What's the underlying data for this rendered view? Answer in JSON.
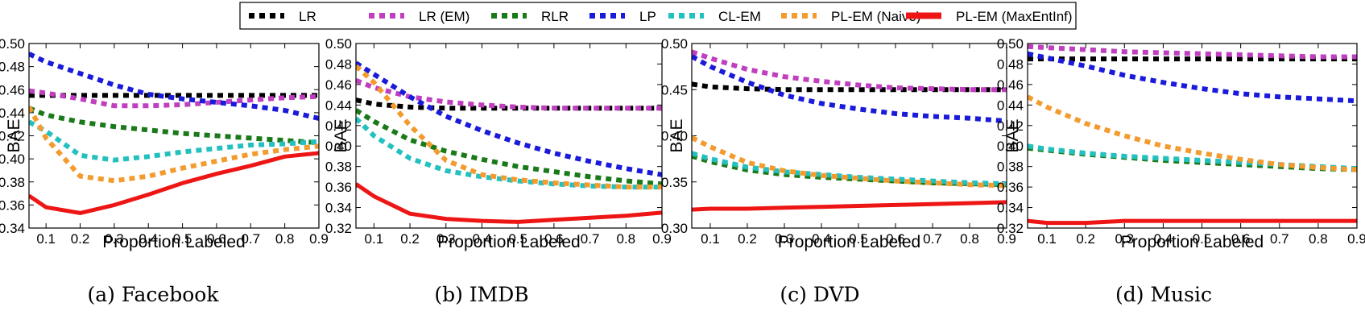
{
  "legend": [
    {
      "name": "LR",
      "color": "#000000",
      "style": "dotted"
    },
    {
      "name": "LR (EM)",
      "color": "#bf3fbf",
      "style": "dotted"
    },
    {
      "name": "RLR",
      "color": "#1a7a1a",
      "style": "dotted"
    },
    {
      "name": "LP",
      "color": "#1a1adb",
      "style": "dotted"
    },
    {
      "name": "CL-EM",
      "color": "#23c0c0",
      "style": "dotted"
    },
    {
      "name": "PL-EM (Naive)",
      "color": "#f39b2e",
      "style": "dotted"
    },
    {
      "name": "PL-EM (MaxEntInf)",
      "color": "#ee1515",
      "style": "solid"
    }
  ],
  "chart_data": [
    {
      "type": "line",
      "title": "(a) Facebook",
      "xlabel": "Proportion Labeled",
      "ylabel": "BAE",
      "xlim": [
        0.05,
        0.9
      ],
      "ylim": [
        0.34,
        0.5
      ],
      "xticks": [
        "0.1",
        "0.2",
        "0.3",
        "0.4",
        "0.5",
        "0.6",
        "0.7",
        "0.8",
        "0.9"
      ],
      "yticks": [
        "0.34",
        "0.36",
        "0.38",
        "0.40",
        "0.42",
        "0.44",
        "0.46",
        "0.48",
        "0.50"
      ],
      "x": [
        0.05,
        0.1,
        0.2,
        0.3,
        0.4,
        0.5,
        0.6,
        0.7,
        0.8,
        0.9
      ],
      "series": [
        {
          "name": "LR",
          "values": [
            0.455,
            0.455,
            0.455,
            0.455,
            0.455,
            0.455,
            0.455,
            0.455,
            0.455,
            0.455
          ]
        },
        {
          "name": "LR (EM)",
          "values": [
            0.459,
            0.457,
            0.452,
            0.446,
            0.446,
            0.447,
            0.449,
            0.451,
            0.453,
            0.454
          ]
        },
        {
          "name": "RLR",
          "values": [
            0.444,
            0.438,
            0.432,
            0.428,
            0.425,
            0.422,
            0.42,
            0.418,
            0.416,
            0.414
          ]
        },
        {
          "name": "LP",
          "values": [
            0.491,
            0.484,
            0.474,
            0.464,
            0.456,
            0.452,
            0.449,
            0.446,
            0.442,
            0.435
          ]
        },
        {
          "name": "CL-EM",
          "values": [
            0.432,
            0.424,
            0.403,
            0.399,
            0.402,
            0.406,
            0.409,
            0.412,
            0.413,
            0.415
          ]
        },
        {
          "name": "PL-EM (Naive)",
          "values": [
            0.445,
            0.418,
            0.385,
            0.381,
            0.385,
            0.392,
            0.398,
            0.404,
            0.408,
            0.411
          ]
        },
        {
          "name": "PL-EM (MaxEntInf)",
          "values": [
            0.368,
            0.358,
            0.353,
            0.36,
            0.369,
            0.379,
            0.387,
            0.394,
            0.402,
            0.405
          ]
        }
      ]
    },
    {
      "type": "line",
      "title": "(b) IMDB",
      "xlabel": "Proportion Labeled",
      "ylabel": "BAE",
      "xlim": [
        0.05,
        0.9
      ],
      "ylim": [
        0.32,
        0.5
      ],
      "xticks": [
        "0.1",
        "0.2",
        "0.3",
        "0.4",
        "0.5",
        "0.6",
        "0.7",
        "0.8",
        "0.9"
      ],
      "yticks": [
        "0.32",
        "0.34",
        "0.36",
        "0.38",
        "0.40",
        "0.42",
        "0.44",
        "0.46",
        "0.48",
        "0.50"
      ],
      "x": [
        0.05,
        0.1,
        0.2,
        0.3,
        0.4,
        0.5,
        0.6,
        0.7,
        0.8,
        0.9
      ],
      "series": [
        {
          "name": "LR",
          "values": [
            0.445,
            0.441,
            0.438,
            0.437,
            0.437,
            0.437,
            0.437,
            0.437,
            0.437,
            0.437
          ]
        },
        {
          "name": "LR (EM)",
          "values": [
            0.464,
            0.457,
            0.448,
            0.443,
            0.44,
            0.438,
            0.437,
            0.437,
            0.437,
            0.437
          ]
        },
        {
          "name": "RLR",
          "values": [
            0.435,
            0.424,
            0.406,
            0.395,
            0.387,
            0.38,
            0.375,
            0.37,
            0.366,
            0.363
          ]
        },
        {
          "name": "LP",
          "values": [
            0.481,
            0.47,
            0.448,
            0.429,
            0.415,
            0.403,
            0.393,
            0.385,
            0.378,
            0.372
          ]
        },
        {
          "name": "CL-EM",
          "values": [
            0.427,
            0.41,
            0.388,
            0.376,
            0.37,
            0.366,
            0.363,
            0.361,
            0.36,
            0.36
          ]
        },
        {
          "name": "PL-EM (Naive)",
          "values": [
            0.478,
            0.462,
            0.42,
            0.386,
            0.372,
            0.367,
            0.364,
            0.362,
            0.36,
            0.36
          ]
        },
        {
          "name": "PL-EM (MaxEntInf)",
          "values": [
            0.363,
            0.351,
            0.334,
            0.329,
            0.327,
            0.326,
            0.328,
            0.33,
            0.332,
            0.335
          ]
        }
      ]
    },
    {
      "type": "line",
      "title": "(c) DVD",
      "xlabel": "Proportion Labeled",
      "ylabel": "BAE",
      "xlim": [
        0.05,
        0.9
      ],
      "ylim": [
        0.3,
        0.5
      ],
      "xticks": [
        "0.1",
        "0.2",
        "0.3",
        "0.4",
        "0.5",
        "0.6",
        "0.7",
        "0.8",
        "0.9"
      ],
      "yticks": [
        "0.30",
        "0.35",
        "0.40",
        "0.45",
        "0.50"
      ],
      "x": [
        0.05,
        0.1,
        0.2,
        0.3,
        0.4,
        0.5,
        0.6,
        0.7,
        0.8,
        0.9
      ],
      "series": [
        {
          "name": "LR",
          "values": [
            0.456,
            0.453,
            0.451,
            0.45,
            0.45,
            0.45,
            0.45,
            0.45,
            0.45,
            0.45
          ]
        },
        {
          "name": "LR (EM)",
          "values": [
            0.491,
            0.484,
            0.472,
            0.464,
            0.459,
            0.455,
            0.452,
            0.451,
            0.45,
            0.45
          ]
        },
        {
          "name": "RLR",
          "values": [
            0.378,
            0.372,
            0.363,
            0.358,
            0.355,
            0.353,
            0.351,
            0.349,
            0.348,
            0.347
          ]
        },
        {
          "name": "LP",
          "values": [
            0.486,
            0.475,
            0.458,
            0.444,
            0.435,
            0.429,
            0.424,
            0.421,
            0.419,
            0.416
          ]
        },
        {
          "name": "CL-EM",
          "values": [
            0.381,
            0.375,
            0.366,
            0.361,
            0.358,
            0.355,
            0.353,
            0.351,
            0.349,
            0.348
          ]
        },
        {
          "name": "PL-EM (Naive)",
          "values": [
            0.398,
            0.388,
            0.371,
            0.362,
            0.357,
            0.354,
            0.351,
            0.349,
            0.347,
            0.346
          ]
        },
        {
          "name": "PL-EM (MaxEntInf)",
          "values": [
            0.32,
            0.321,
            0.321,
            0.322,
            0.323,
            0.324,
            0.325,
            0.326,
            0.327,
            0.328
          ]
        }
      ]
    },
    {
      "type": "line",
      "title": "(d) Music",
      "xlabel": "Proportion Labeled",
      "ylabel": "BAE",
      "xlim": [
        0.05,
        0.9
      ],
      "ylim": [
        0.32,
        0.5
      ],
      "xticks": [
        "0.1",
        "0.2",
        "0.3",
        "0.4",
        "0.5",
        "0.6",
        "0.7",
        "0.8",
        "0.9"
      ],
      "yticks": [
        "0.32",
        "0.34",
        "0.36",
        "0.38",
        "0.40",
        "0.42",
        "0.44",
        "0.46",
        "0.48",
        "0.50"
      ],
      "x": [
        0.05,
        0.1,
        0.2,
        0.3,
        0.4,
        0.5,
        0.6,
        0.7,
        0.8,
        0.9
      ],
      "series": [
        {
          "name": "LR",
          "values": [
            0.485,
            0.485,
            0.485,
            0.485,
            0.485,
            0.485,
            0.485,
            0.485,
            0.485,
            0.485
          ]
        },
        {
          "name": "LR (EM)",
          "values": [
            0.497,
            0.496,
            0.494,
            0.492,
            0.491,
            0.49,
            0.489,
            0.488,
            0.487,
            0.487
          ]
        },
        {
          "name": "RLR",
          "values": [
            0.398,
            0.396,
            0.392,
            0.389,
            0.386,
            0.384,
            0.382,
            0.38,
            0.378,
            0.377
          ]
        },
        {
          "name": "LP",
          "values": [
            0.49,
            0.486,
            0.478,
            0.469,
            0.462,
            0.456,
            0.451,
            0.448,
            0.446,
            0.444
          ]
        },
        {
          "name": "CL-EM",
          "values": [
            0.4,
            0.397,
            0.393,
            0.39,
            0.388,
            0.386,
            0.384,
            0.382,
            0.38,
            0.378
          ]
        },
        {
          "name": "PL-EM (Naive)",
          "values": [
            0.448,
            0.438,
            0.422,
            0.41,
            0.4,
            0.393,
            0.387,
            0.382,
            0.379,
            0.377
          ]
        },
        {
          "name": "PL-EM (MaxEntInf)",
          "values": [
            0.327,
            0.325,
            0.325,
            0.327,
            0.327,
            0.327,
            0.327,
            0.327,
            0.327,
            0.327
          ]
        }
      ]
    }
  ]
}
